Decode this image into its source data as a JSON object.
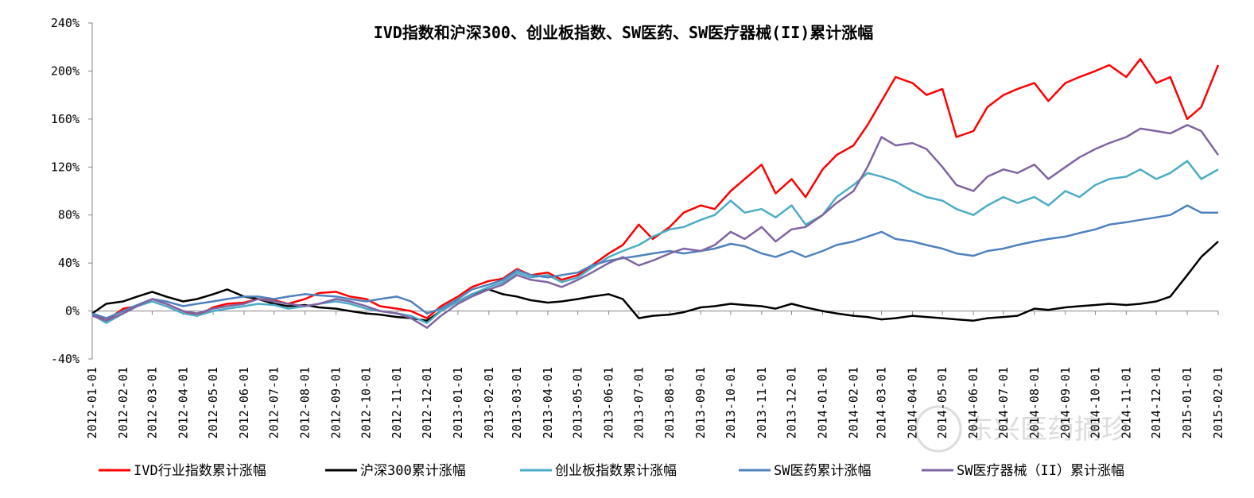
{
  "chart_data": {
    "type": "line",
    "title": "IVD指数和沪深300、创业板指数、SW医药、SW医疗器械(II)累计涨幅",
    "xlabel": "",
    "ylabel": "",
    "ylim": [
      -40,
      240
    ],
    "yticks": [
      -40,
      0,
      40,
      80,
      120,
      160,
      200,
      240
    ],
    "ytick_labels": [
      "-40%",
      "0%",
      "40%",
      "80%",
      "120%",
      "160%",
      "200%",
      "240%"
    ],
    "x_range": [
      "2012-01-01",
      "2015-02-01"
    ],
    "x_tick_labels": [
      "2012-01-01",
      "2012-02-01",
      "2012-03-01",
      "2012-04-01",
      "2012-05-01",
      "2012-06-01",
      "2012-07-01",
      "2012-08-01",
      "2012-09-01",
      "2012-10-01",
      "2012-11-01",
      "2012-12-01",
      "2013-01-01",
      "2013-02-01",
      "2013-03-01",
      "2013-04-01",
      "2013-05-01",
      "2013-06-01",
      "2013-07-01",
      "2013-08-01",
      "2013-09-01",
      "2013-10-01",
      "2013-11-01",
      "2013-12-01",
      "2014-01-01",
      "2014-02-01",
      "2014-03-01",
      "2014-04-01",
      "2014-05-01",
      "2014-06-01",
      "2014-07-01",
      "2014-08-01",
      "2014-09-01",
      "2014-10-01",
      "2014-11-01",
      "2014-12-01",
      "2015-01-01",
      "2015-02-01"
    ],
    "grid": false,
    "legend_position": "bottom",
    "series": [
      {
        "name": "IVD行业指数累计涨幅",
        "color": "#ff0000",
        "x": [
          "2012-01-01",
          "2012-01-15",
          "2012-02-01",
          "2012-02-15",
          "2012-03-01",
          "2012-03-15",
          "2012-04-01",
          "2012-04-15",
          "2012-05-01",
          "2012-05-15",
          "2012-06-01",
          "2012-06-15",
          "2012-07-01",
          "2012-07-15",
          "2012-08-01",
          "2012-08-15",
          "2012-09-01",
          "2012-09-15",
          "2012-10-01",
          "2012-10-15",
          "2012-11-01",
          "2012-11-15",
          "2012-12-01",
          "2012-12-15",
          "2013-01-01",
          "2013-01-15",
          "2013-02-01",
          "2013-02-15",
          "2013-03-01",
          "2013-03-15",
          "2013-04-01",
          "2013-04-15",
          "2013-05-01",
          "2013-05-15",
          "2013-06-01",
          "2013-06-15",
          "2013-07-01",
          "2013-07-15",
          "2013-08-01",
          "2013-08-15",
          "2013-09-01",
          "2013-09-15",
          "2013-10-01",
          "2013-10-15",
          "2013-11-01",
          "2013-11-15",
          "2013-12-01",
          "2013-12-15",
          "2014-01-01",
          "2014-01-15",
          "2014-02-01",
          "2014-02-15",
          "2014-03-01",
          "2014-03-15",
          "2014-04-01",
          "2014-04-15",
          "2014-05-01",
          "2014-05-15",
          "2014-06-01",
          "2014-06-15",
          "2014-07-01",
          "2014-07-15",
          "2014-08-01",
          "2014-08-15",
          "2014-09-01",
          "2014-09-15",
          "2014-10-01",
          "2014-10-15",
          "2014-11-01",
          "2014-11-15",
          "2014-12-01",
          "2014-12-15",
          "2015-01-01",
          "2015-01-15",
          "2015-02-01"
        ],
        "values": [
          -2,
          -8,
          2,
          4,
          10,
          6,
          0,
          -4,
          3,
          6,
          7,
          10,
          9,
          6,
          10,
          15,
          16,
          12,
          10,
          4,
          2,
          0,
          -6,
          4,
          12,
          20,
          25,
          27,
          35,
          30,
          32,
          26,
          30,
          38,
          48,
          55,
          72,
          60,
          70,
          82,
          88,
          85,
          100,
          110,
          122,
          98,
          110,
          95,
          118,
          130,
          138,
          155,
          175,
          195,
          190,
          180,
          185,
          145,
          150,
          170,
          180,
          185,
          190,
          175,
          190,
          195,
          200,
          205,
          195,
          210,
          190,
          195,
          160,
          170,
          205
        ]
      },
      {
        "name": "沪深300累计涨幅",
        "color": "#000000",
        "x": [
          "2012-01-01",
          "2012-01-15",
          "2012-02-01",
          "2012-02-15",
          "2012-03-01",
          "2012-03-15",
          "2012-04-01",
          "2012-04-15",
          "2012-05-01",
          "2012-05-15",
          "2012-06-01",
          "2012-06-15",
          "2012-07-01",
          "2012-07-15",
          "2012-08-01",
          "2012-08-15",
          "2012-09-01",
          "2012-09-15",
          "2012-10-01",
          "2012-10-15",
          "2012-11-01",
          "2012-11-15",
          "2012-12-01",
          "2012-12-15",
          "2013-01-01",
          "2013-01-15",
          "2013-02-01",
          "2013-02-15",
          "2013-03-01",
          "2013-03-15",
          "2013-04-01",
          "2013-04-15",
          "2013-05-01",
          "2013-05-15",
          "2013-06-01",
          "2013-06-15",
          "2013-07-01",
          "2013-07-15",
          "2013-08-01",
          "2013-08-15",
          "2013-09-01",
          "2013-09-15",
          "2013-10-01",
          "2013-10-15",
          "2013-11-01",
          "2013-11-15",
          "2013-12-01",
          "2013-12-15",
          "2014-01-01",
          "2014-01-15",
          "2014-02-01",
          "2014-02-15",
          "2014-03-01",
          "2014-03-15",
          "2014-04-01",
          "2014-04-15",
          "2014-05-01",
          "2014-05-15",
          "2014-06-01",
          "2014-06-15",
          "2014-07-01",
          "2014-07-15",
          "2014-08-01",
          "2014-08-15",
          "2014-09-01",
          "2014-09-15",
          "2014-10-01",
          "2014-10-15",
          "2014-11-01",
          "2014-11-15",
          "2014-12-01",
          "2014-12-15",
          "2015-01-01",
          "2015-01-15",
          "2015-02-01"
        ],
        "values": [
          -2,
          6,
          8,
          12,
          16,
          12,
          8,
          10,
          14,
          18,
          12,
          10,
          6,
          4,
          5,
          3,
          2,
          0,
          -2,
          -3,
          -5,
          -6,
          -8,
          0,
          8,
          14,
          18,
          14,
          12,
          9,
          7,
          8,
          10,
          12,
          14,
          10,
          -6,
          -4,
          -3,
          -1,
          3,
          4,
          6,
          5,
          4,
          2,
          6,
          3,
          0,
          -2,
          -4,
          -5,
          -7,
          -6,
          -4,
          -5,
          -6,
          -7,
          -8,
          -6,
          -5,
          -4,
          2,
          1,
          3,
          4,
          5,
          6,
          5,
          6,
          8,
          12,
          30,
          45,
          58
        ]
      },
      {
        "name": "创业板指数累计涨幅",
        "color": "#4bacc6",
        "x": [
          "2012-01-01",
          "2012-01-15",
          "2012-02-01",
          "2012-02-15",
          "2012-03-01",
          "2012-03-15",
          "2012-04-01",
          "2012-04-15",
          "2012-05-01",
          "2012-05-15",
          "2012-06-01",
          "2012-06-15",
          "2012-07-01",
          "2012-07-15",
          "2012-08-01",
          "2012-08-15",
          "2012-09-01",
          "2012-09-15",
          "2012-10-01",
          "2012-10-15",
          "2012-11-01",
          "2012-11-15",
          "2012-12-01",
          "2012-12-15",
          "2013-01-01",
          "2013-01-15",
          "2013-02-01",
          "2013-02-15",
          "2013-03-01",
          "2013-03-15",
          "2013-04-01",
          "2013-04-15",
          "2013-05-01",
          "2013-05-15",
          "2013-06-01",
          "2013-06-15",
          "2013-07-01",
          "2013-07-15",
          "2013-08-01",
          "2013-08-15",
          "2013-09-01",
          "2013-09-15",
          "2013-10-01",
          "2013-10-15",
          "2013-11-01",
          "2013-11-15",
          "2013-12-01",
          "2013-12-15",
          "2014-01-01",
          "2014-01-15",
          "2014-02-01",
          "2014-02-15",
          "2014-03-01",
          "2014-03-15",
          "2014-04-01",
          "2014-04-15",
          "2014-05-01",
          "2014-05-15",
          "2014-06-01",
          "2014-06-15",
          "2014-07-01",
          "2014-07-15",
          "2014-08-01",
          "2014-08-15",
          "2014-09-01",
          "2014-09-15",
          "2014-10-01",
          "2014-10-15",
          "2014-11-01",
          "2014-11-15",
          "2014-12-01",
          "2014-12-15",
          "2015-01-01",
          "2015-01-15",
          "2015-02-01"
        ],
        "values": [
          -3,
          -10,
          -2,
          4,
          8,
          4,
          -2,
          -4,
          0,
          2,
          4,
          6,
          5,
          2,
          4,
          6,
          8,
          6,
          2,
          0,
          -2,
          -4,
          -10,
          0,
          8,
          14,
          20,
          24,
          32,
          28,
          30,
          24,
          28,
          36,
          45,
          50,
          55,
          62,
          68,
          70,
          76,
          80,
          92,
          82,
          85,
          78,
          88,
          72,
          80,
          95,
          105,
          115,
          112,
          108,
          100,
          95,
          92,
          85,
          80,
          88,
          95,
          90,
          95,
          88,
          100,
          95,
          105,
          110,
          112,
          118,
          110,
          115,
          125,
          110,
          118
        ]
      },
      {
        "name": "SW医药累计涨幅",
        "color": "#4f81bd",
        "x": [
          "2012-01-01",
          "2012-01-15",
          "2012-02-01",
          "2012-02-15",
          "2012-03-01",
          "2012-03-15",
          "2012-04-01",
          "2012-04-15",
          "2012-05-01",
          "2012-05-15",
          "2012-06-01",
          "2012-06-15",
          "2012-07-01",
          "2012-07-15",
          "2012-08-01",
          "2012-08-15",
          "2012-09-01",
          "2012-09-15",
          "2012-10-01",
          "2012-10-15",
          "2012-11-01",
          "2012-11-15",
          "2012-12-01",
          "2012-12-15",
          "2013-01-01",
          "2013-01-15",
          "2013-02-01",
          "2013-02-15",
          "2013-03-01",
          "2013-03-15",
          "2013-04-01",
          "2013-04-15",
          "2013-05-01",
          "2013-05-15",
          "2013-06-01",
          "2013-06-15",
          "2013-07-01",
          "2013-07-15",
          "2013-08-01",
          "2013-08-15",
          "2013-09-01",
          "2013-09-15",
          "2013-10-01",
          "2013-10-15",
          "2013-11-01",
          "2013-11-15",
          "2013-12-01",
          "2013-12-15",
          "2014-01-01",
          "2014-01-15",
          "2014-02-01",
          "2014-02-15",
          "2014-03-01",
          "2014-03-15",
          "2014-04-01",
          "2014-04-15",
          "2014-05-01",
          "2014-05-15",
          "2014-06-01",
          "2014-06-15",
          "2014-07-01",
          "2014-07-15",
          "2014-08-01",
          "2014-08-15",
          "2014-09-01",
          "2014-09-15",
          "2014-10-01",
          "2014-10-15",
          "2014-11-01",
          "2014-11-15",
          "2014-12-01",
          "2014-12-15",
          "2015-01-01",
          "2015-01-15",
          "2015-02-01"
        ],
        "values": [
          -2,
          -6,
          0,
          5,
          10,
          8,
          4,
          6,
          8,
          10,
          12,
          12,
          10,
          12,
          14,
          13,
          12,
          10,
          8,
          10,
          12,
          8,
          -2,
          2,
          10,
          18,
          22,
          26,
          34,
          30,
          28,
          30,
          32,
          38,
          42,
          44,
          46,
          48,
          50,
          48,
          50,
          52,
          56,
          54,
          48,
          45,
          50,
          45,
          50,
          55,
          58,
          62,
          66,
          60,
          58,
          55,
          52,
          48,
          46,
          50,
          52,
          55,
          58,
          60,
          62,
          65,
          68,
          72,
          74,
          76,
          78,
          80,
          88,
          82,
          82
        ]
      },
      {
        "name": "SW医疗器械（II）累计涨幅",
        "color": "#8064a2",
        "x": [
          "2012-01-01",
          "2012-01-15",
          "2012-02-01",
          "2012-02-15",
          "2012-03-01",
          "2012-03-15",
          "2012-04-01",
          "2012-04-15",
          "2012-05-01",
          "2012-05-15",
          "2012-06-01",
          "2012-06-15",
          "2012-07-01",
          "2012-07-15",
          "2012-08-01",
          "2012-08-15",
          "2012-09-01",
          "2012-09-15",
          "2012-10-01",
          "2012-10-15",
          "2012-11-01",
          "2012-11-15",
          "2012-12-01",
          "2012-12-15",
          "2013-01-01",
          "2013-01-15",
          "2013-02-01",
          "2013-02-15",
          "2013-03-01",
          "2013-03-15",
          "2013-04-01",
          "2013-04-15",
          "2013-05-01",
          "2013-05-15",
          "2013-06-01",
          "2013-06-15",
          "2013-07-01",
          "2013-07-15",
          "2013-08-01",
          "2013-08-15",
          "2013-09-01",
          "2013-09-15",
          "2013-10-01",
          "2013-10-15",
          "2013-11-01",
          "2013-11-15",
          "2013-12-01",
          "2013-12-15",
          "2014-01-01",
          "2014-01-15",
          "2014-02-01",
          "2014-02-15",
          "2014-03-01",
          "2014-03-15",
          "2014-04-01",
          "2014-04-15",
          "2014-05-01",
          "2014-05-15",
          "2014-06-01",
          "2014-06-15",
          "2014-07-01",
          "2014-07-15",
          "2014-08-01",
          "2014-08-15",
          "2014-09-01",
          "2014-09-15",
          "2014-10-01",
          "2014-10-15",
          "2014-11-01",
          "2014-11-15",
          "2014-12-01",
          "2014-12-15",
          "2015-01-01",
          "2015-01-15",
          "2015-02-01"
        ],
        "values": [
          -4,
          -8,
          -2,
          4,
          10,
          6,
          0,
          -2,
          2,
          4,
          6,
          10,
          8,
          6,
          4,
          6,
          10,
          8,
          4,
          0,
          -2,
          -6,
          -14,
          -4,
          6,
          12,
          18,
          22,
          30,
          26,
          24,
          20,
          26,
          32,
          40,
          45,
          38,
          42,
          48,
          52,
          50,
          55,
          66,
          60,
          70,
          58,
          68,
          70,
          80,
          90,
          100,
          120,
          145,
          138,
          140,
          135,
          120,
          105,
          100,
          112,
          118,
          115,
          122,
          110,
          120,
          128,
          135,
          140,
          145,
          152,
          150,
          148,
          155,
          150,
          130
        ]
      }
    ],
    "watermark": "东兴医药摘珍"
  }
}
